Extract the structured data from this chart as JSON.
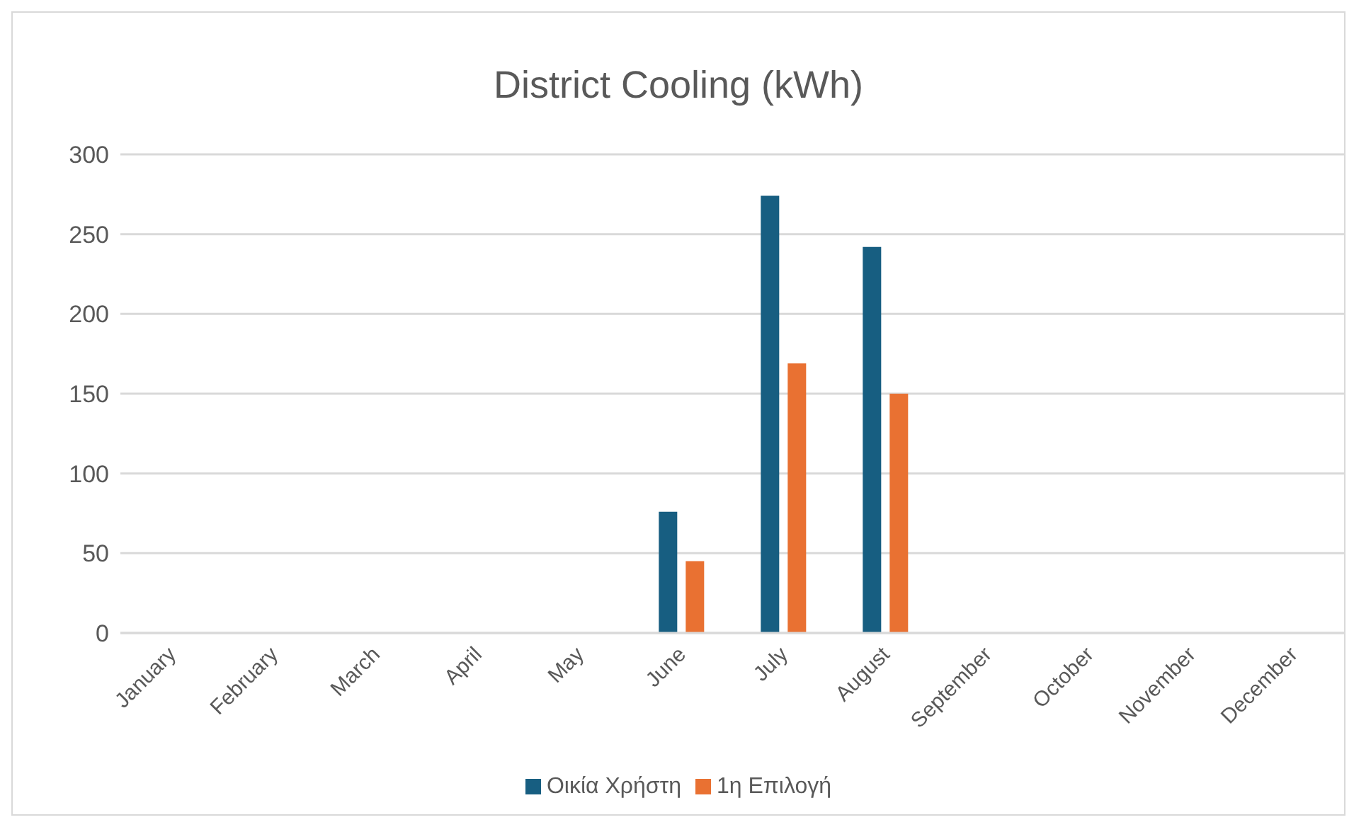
{
  "chart_data": {
    "type": "bar",
    "title": "District Cooling (kWh)",
    "categories": [
      "January",
      "February",
      "March",
      "April",
      "May",
      "June",
      "July",
      "August",
      "September",
      "October",
      "November",
      "December"
    ],
    "series": [
      {
        "name": "Οικία Χρήστη",
        "color": "#175e81",
        "values": [
          0,
          0,
          0,
          0,
          0,
          76,
          274,
          242,
          0,
          0,
          0,
          0
        ]
      },
      {
        "name": "1η Επιλογή",
        "color": "#e97132",
        "values": [
          0,
          0,
          0,
          0,
          0,
          45,
          169,
          150,
          0,
          0,
          0,
          0
        ]
      }
    ],
    "ylim": [
      0,
      300
    ],
    "yticks": [
      0,
      50,
      100,
      150,
      200,
      250,
      300
    ],
    "grid": "y",
    "legend": "bottom"
  }
}
